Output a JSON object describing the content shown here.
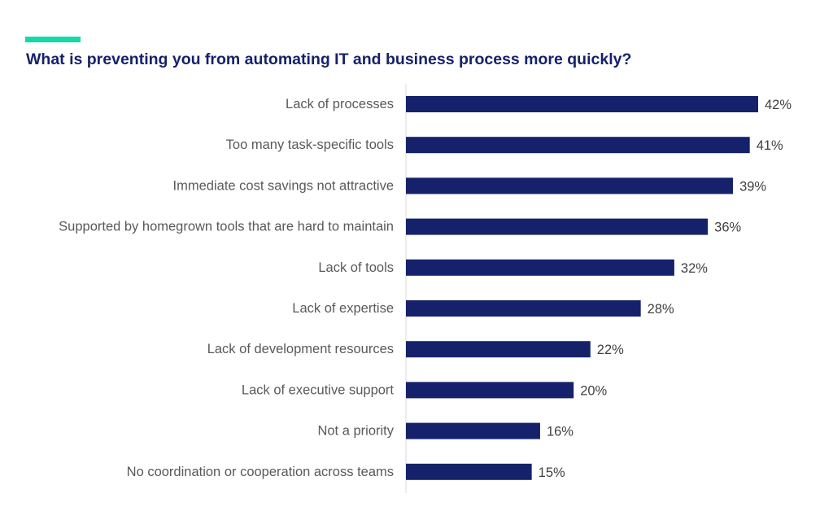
{
  "chart_data": {
    "type": "bar",
    "orientation": "horizontal",
    "title": "What is preventing you from automating IT and business process more quickly?",
    "categories": [
      "Lack of processes",
      "Too many task-specific tools",
      "Immediate cost savings not attractive",
      "Supported by homegrown tools that are hard to maintain",
      "Lack of tools",
      "Lack of expertise",
      "Lack of development resources",
      "Lack of executive support",
      "Not a priority",
      "No coordination or cooperation across teams"
    ],
    "values": [
      42,
      41,
      39,
      36,
      32,
      28,
      22,
      20,
      16,
      15
    ],
    "value_labels": [
      "42%",
      "41%",
      "39%",
      "36%",
      "32%",
      "28%",
      "22%",
      "20%",
      "16%",
      "15%"
    ],
    "xlim": [
      0,
      45
    ],
    "grid": false,
    "legend": "none",
    "colors": {
      "bar": "#15226b",
      "title": "#15226b",
      "accent": "#14d9a8",
      "axis": "#d9d9d9"
    }
  }
}
